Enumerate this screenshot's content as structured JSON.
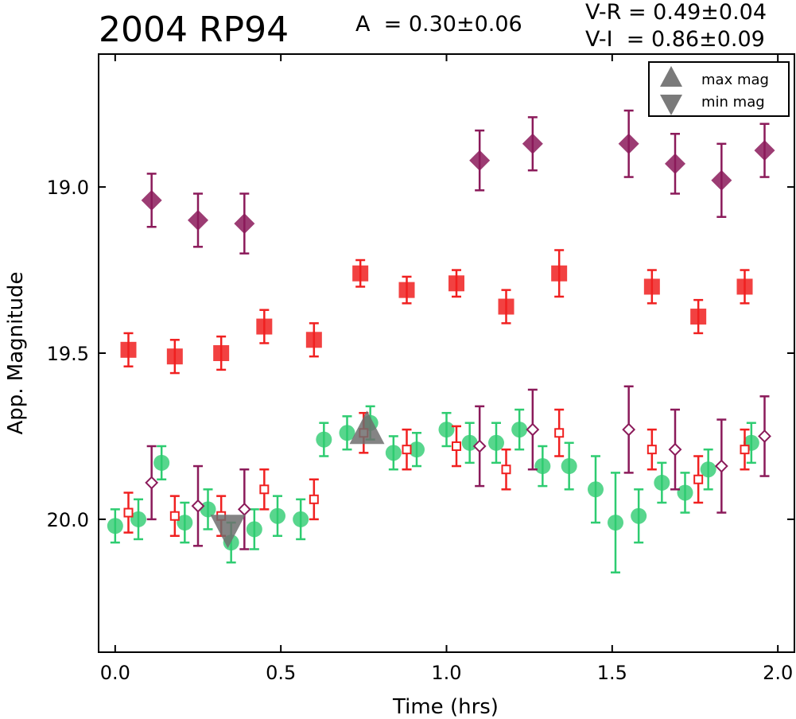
{
  "header": {
    "title": "2004 RP94",
    "amplitude": "A  = 0.30±0.06",
    "v_r": "V-R = 0.49±0.04",
    "v_i": "V-I  = 0.86±0.09"
  },
  "chart_data": {
    "type": "scatter",
    "title": "2004 RP94",
    "xlabel": "Time (hrs)",
    "ylabel": "App. Magnitude",
    "xlim": [
      -0.05,
      2.05
    ],
    "ylim": [
      20.4,
      18.6
    ],
    "y_inverted": true,
    "xticks": [
      0.0,
      0.5,
      1.0,
      1.5,
      2.0
    ],
    "xtick_labels": [
      "0.0",
      "0.5",
      "1.0",
      "1.5",
      "2.0"
    ],
    "yticks": [
      19.0,
      19.5,
      20.0
    ],
    "ytick_labels": [
      "19.0",
      "19.5",
      "20.0"
    ],
    "grid": false,
    "legend": {
      "placement": "top-right",
      "entries": [
        {
          "label": "max mag",
          "marker": "triangle-up",
          "color": "#7a7a7a"
        },
        {
          "label": "min mag",
          "marker": "triangle-down",
          "color": "#7a7a7a"
        }
      ]
    },
    "colors": {
      "V": "#2ecc71",
      "R": "#f02020",
      "I": "#8b1a5a",
      "extrema": "#6e6e6e"
    },
    "series": [
      {
        "marker": "filled-diamond",
        "color": "#8b1a5a",
        "points": [
          {
            "x": 0.11,
            "y": 19.04,
            "err": 0.08
          },
          {
            "x": 0.25,
            "y": 19.1,
            "err": 0.08
          },
          {
            "x": 0.39,
            "y": 19.11,
            "err": 0.09
          },
          {
            "x": 1.1,
            "y": 18.92,
            "err": 0.09
          },
          {
            "x": 1.26,
            "y": 18.87,
            "err": 0.08
          },
          {
            "x": 1.55,
            "y": 18.87,
            "err": 0.1
          },
          {
            "x": 1.69,
            "y": 18.93,
            "err": 0.09
          },
          {
            "x": 1.83,
            "y": 18.98,
            "err": 0.11
          },
          {
            "x": 1.96,
            "y": 18.89,
            "err": 0.08
          }
        ]
      },
      {
        "marker": "filled-square",
        "color": "#f02020",
        "points": [
          {
            "x": 0.04,
            "y": 19.49,
            "err": 0.05
          },
          {
            "x": 0.18,
            "y": 19.51,
            "err": 0.05
          },
          {
            "x": 0.32,
            "y": 19.5,
            "err": 0.05
          },
          {
            "x": 0.45,
            "y": 19.42,
            "err": 0.05
          },
          {
            "x": 0.6,
            "y": 19.46,
            "err": 0.05
          },
          {
            "x": 0.74,
            "y": 19.26,
            "err": 0.04
          },
          {
            "x": 0.88,
            "y": 19.31,
            "err": 0.04
          },
          {
            "x": 1.03,
            "y": 19.29,
            "err": 0.04
          },
          {
            "x": 1.18,
            "y": 19.36,
            "err": 0.05
          },
          {
            "x": 1.34,
            "y": 19.26,
            "err": 0.07
          },
          {
            "x": 1.62,
            "y": 19.3,
            "err": 0.05
          },
          {
            "x": 1.76,
            "y": 19.39,
            "err": 0.05
          },
          {
            "x": 1.9,
            "y": 19.3,
            "err": 0.05
          }
        ]
      },
      {
        "marker": "filled-circle",
        "color": "#2ecc71",
        "points": [
          {
            "x": 0.0,
            "y": 20.02,
            "err": 0.05
          },
          {
            "x": 0.07,
            "y": 20.0,
            "err": 0.06
          },
          {
            "x": 0.14,
            "y": 19.83,
            "err": 0.05
          },
          {
            "x": 0.21,
            "y": 20.01,
            "err": 0.06
          },
          {
            "x": 0.28,
            "y": 19.97,
            "err": 0.06
          },
          {
            "x": 0.35,
            "y": 20.07,
            "err": 0.06
          },
          {
            "x": 0.42,
            "y": 20.03,
            "err": 0.06
          },
          {
            "x": 0.49,
            "y": 19.99,
            "err": 0.06
          },
          {
            "x": 0.56,
            "y": 20.0,
            "err": 0.06
          },
          {
            "x": 0.63,
            "y": 19.76,
            "err": 0.05
          },
          {
            "x": 0.7,
            "y": 19.74,
            "err": 0.05
          },
          {
            "x": 0.77,
            "y": 19.71,
            "err": 0.05
          },
          {
            "x": 0.84,
            "y": 19.8,
            "err": 0.05
          },
          {
            "x": 0.91,
            "y": 19.79,
            "err": 0.05
          },
          {
            "x": 1.0,
            "y": 19.73,
            "err": 0.05
          },
          {
            "x": 1.07,
            "y": 19.77,
            "err": 0.06
          },
          {
            "x": 1.15,
            "y": 19.77,
            "err": 0.06
          },
          {
            "x": 1.22,
            "y": 19.73,
            "err": 0.06
          },
          {
            "x": 1.29,
            "y": 19.84,
            "err": 0.06
          },
          {
            "x": 1.37,
            "y": 19.84,
            "err": 0.07
          },
          {
            "x": 1.45,
            "y": 19.91,
            "err": 0.1
          },
          {
            "x": 1.51,
            "y": 20.01,
            "err": 0.15
          },
          {
            "x": 1.58,
            "y": 19.99,
            "err": 0.08
          },
          {
            "x": 1.65,
            "y": 19.89,
            "err": 0.06
          },
          {
            "x": 1.72,
            "y": 19.92,
            "err": 0.06
          },
          {
            "x": 1.79,
            "y": 19.85,
            "err": 0.06
          },
          {
            "x": 1.92,
            "y": 19.77,
            "err": 0.06
          }
        ]
      },
      {
        "marker": "open-square",
        "color": "#f02020",
        "points": [
          {
            "x": 0.04,
            "y": 19.98,
            "err": 0.06
          },
          {
            "x": 0.18,
            "y": 19.99,
            "err": 0.06
          },
          {
            "x": 0.32,
            "y": 19.99,
            "err": 0.06
          },
          {
            "x": 0.45,
            "y": 19.91,
            "err": 0.06
          },
          {
            "x": 0.6,
            "y": 19.94,
            "err": 0.06
          },
          {
            "x": 0.75,
            "y": 19.74,
            "err": 0.06
          },
          {
            "x": 0.88,
            "y": 19.79,
            "err": 0.06
          },
          {
            "x": 1.03,
            "y": 19.78,
            "err": 0.06
          },
          {
            "x": 1.18,
            "y": 19.85,
            "err": 0.06
          },
          {
            "x": 1.34,
            "y": 19.74,
            "err": 0.07
          },
          {
            "x": 1.62,
            "y": 19.79,
            "err": 0.06
          },
          {
            "x": 1.76,
            "y": 19.88,
            "err": 0.07
          },
          {
            "x": 1.9,
            "y": 19.79,
            "err": 0.06
          }
        ]
      },
      {
        "marker": "open-diamond",
        "color": "#8b1a5a",
        "points": [
          {
            "x": 0.11,
            "y": 19.89,
            "err": 0.11
          },
          {
            "x": 0.25,
            "y": 19.96,
            "err": 0.12
          },
          {
            "x": 0.39,
            "y": 19.97,
            "err": 0.12
          },
          {
            "x": 1.1,
            "y": 19.78,
            "err": 0.12
          },
          {
            "x": 1.26,
            "y": 19.73,
            "err": 0.12
          },
          {
            "x": 1.55,
            "y": 19.73,
            "err": 0.13
          },
          {
            "x": 1.69,
            "y": 19.79,
            "err": 0.12
          },
          {
            "x": 1.83,
            "y": 19.84,
            "err": 0.14
          },
          {
            "x": 1.96,
            "y": 19.75,
            "err": 0.12
          }
        ]
      },
      {
        "name": "max mag",
        "marker": "triangle-up",
        "color": "#6e6e6e",
        "points": [
          {
            "x": 0.76,
            "y": 19.74
          }
        ]
      },
      {
        "name": "min mag",
        "marker": "triangle-down",
        "color": "#6e6e6e",
        "points": [
          {
            "x": 0.34,
            "y": 20.02
          }
        ]
      }
    ]
  }
}
